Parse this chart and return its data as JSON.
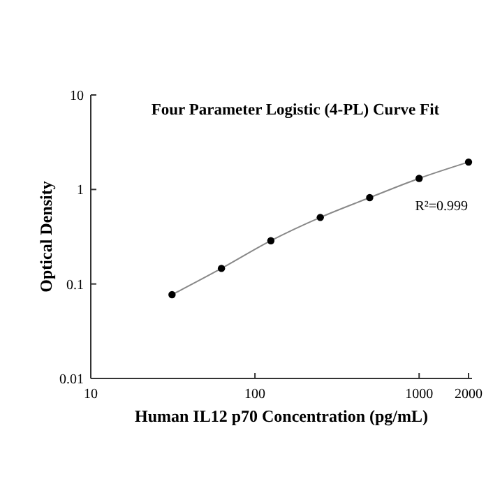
{
  "chart_data": {
    "type": "line",
    "title": "Four Parameter Logistic (4-PL) Curve Fit",
    "xlabel": "Human IL12 p70 Concentration (pg/mL)",
    "ylabel": "Optical Density",
    "x": [
      31.25,
      62.5,
      125,
      250,
      500,
      1000,
      2000
    ],
    "series": [
      {
        "color": "#000000",
        "values": [
          0.077,
          0.146,
          0.287,
          0.506,
          0.82,
          1.31,
          1.95
        ]
      }
    ],
    "log": "xy",
    "xlim": [
      10,
      2100
    ],
    "ylim": [
      0.01,
      10
    ],
    "xticks": [
      10,
      100,
      1000,
      2000
    ],
    "yticks": [
      0.01,
      0.1,
      1,
      10
    ],
    "marker": "circle",
    "line_style": "solid",
    "grid": false,
    "annotations": [
      "R²=0.999"
    ]
  }
}
